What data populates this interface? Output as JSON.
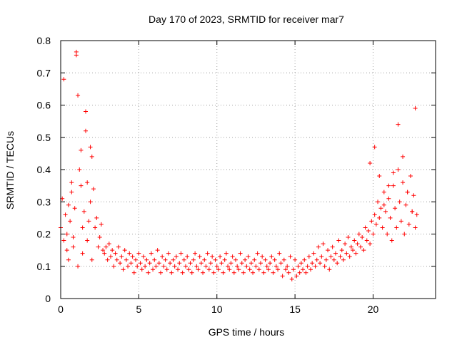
{
  "chart_data": {
    "type": "scatter",
    "title": "Day 170 of 2023, SRMTID for receiver mar7",
    "xlabel": "GPS time / hours",
    "ylabel": "SRMTID / TECUs",
    "xlim": [
      0,
      24
    ],
    "ylim": [
      0,
      0.8
    ],
    "xticks": [
      0,
      5,
      10,
      15,
      20
    ],
    "xtick_labels": [
      "0",
      "5",
      "10",
      "15",
      "20"
    ],
    "yticks": [
      0,
      0.1,
      0.2,
      0.3,
      0.4,
      0.5,
      0.6,
      0.7,
      0.8
    ],
    "ytick_labels": [
      "0",
      "0.1",
      "0.2",
      "0.3",
      "0.4",
      "0.5",
      "0.6",
      "0.7",
      "0.8"
    ],
    "grid": true,
    "marker": "+",
    "color": "#ff0000",
    "series": [
      {
        "name": "SRMTID",
        "x": [
          0.0,
          0.1,
          0.2,
          0.3,
          0.4,
          0.5,
          0.6,
          0.7,
          0.8,
          0.9,
          1.0,
          1.0,
          1.1,
          1.2,
          1.3,
          1.4,
          1.5,
          1.6,
          1.7,
          1.8,
          1.9,
          2.0,
          2.1,
          2.2,
          2.3,
          2.4,
          2.5,
          2.6,
          2.7,
          2.8,
          2.9,
          3.0,
          3.1,
          3.2,
          3.3,
          3.4,
          3.5,
          3.6,
          3.7,
          3.8,
          3.9,
          4.0,
          4.1,
          4.2,
          4.3,
          4.4,
          4.5,
          4.6,
          4.7,
          4.8,
          4.9,
          5.0,
          5.1,
          5.2,
          5.3,
          5.4,
          5.5,
          5.6,
          5.7,
          5.8,
          5.9,
          6.0,
          6.1,
          6.2,
          6.3,
          6.4,
          6.5,
          6.6,
          6.7,
          6.8,
          6.9,
          7.0,
          7.1,
          7.2,
          7.3,
          7.4,
          7.5,
          7.6,
          7.7,
          7.8,
          7.9,
          8.0,
          8.1,
          8.2,
          8.3,
          8.4,
          8.5,
          8.6,
          8.7,
          8.8,
          8.9,
          9.0,
          9.1,
          9.2,
          9.3,
          9.4,
          9.5,
          9.6,
          9.7,
          9.8,
          9.9,
          10.0,
          10.1,
          10.2,
          10.3,
          10.4,
          10.5,
          10.6,
          10.7,
          10.8,
          10.9,
          11.0,
          11.1,
          11.2,
          11.3,
          11.4,
          11.5,
          11.6,
          11.7,
          11.8,
          11.9,
          12.0,
          12.1,
          12.2,
          12.3,
          12.4,
          12.5,
          12.6,
          12.7,
          12.8,
          12.9,
          13.0,
          13.1,
          13.2,
          13.3,
          13.4,
          13.5,
          13.6,
          13.7,
          13.8,
          13.9,
          14.0,
          14.1,
          14.2,
          14.3,
          14.4,
          14.5,
          14.6,
          14.7,
          14.8,
          14.9,
          15.0,
          15.1,
          15.2,
          15.3,
          15.4,
          15.5,
          15.6,
          15.7,
          15.8,
          15.9,
          16.0,
          16.1,
          16.2,
          16.3,
          16.4,
          16.5,
          16.6,
          16.7,
          16.8,
          16.9,
          17.0,
          17.1,
          17.2,
          17.3,
          17.4,
          17.5,
          17.6,
          17.7,
          17.8,
          17.9,
          18.0,
          18.1,
          18.2,
          18.3,
          18.4,
          18.5,
          18.6,
          18.7,
          18.8,
          18.9,
          19.0,
          19.1,
          19.2,
          19.3,
          19.4,
          19.5,
          19.6,
          19.7,
          19.8,
          19.9,
          20.0,
          20.1,
          20.2,
          20.3,
          20.4,
          20.5,
          20.6,
          20.7,
          20.8,
          20.9,
          21.0,
          21.1,
          21.2,
          21.3,
          21.4,
          21.5,
          21.6,
          21.7,
          21.8,
          21.9,
          22.0,
          22.1,
          22.2,
          22.3,
          22.4,
          22.5,
          22.6,
          22.7,
          22.8,
          0.2,
          0.5,
          0.8,
          1.1,
          1.4,
          1.7,
          2.0,
          0.4,
          0.7,
          1.3,
          1.6,
          1.9,
          19.8,
          20.1,
          20.4,
          20.7,
          21.0,
          21.3,
          21.6,
          21.9,
          22.2,
          22.5,
          22.7
        ],
        "y": [
          0.22,
          0.31,
          0.18,
          0.26,
          0.2,
          0.29,
          0.24,
          0.33,
          0.19,
          0.28,
          0.765,
          0.755,
          0.63,
          0.4,
          0.35,
          0.22,
          0.27,
          0.58,
          0.36,
          0.24,
          0.3,
          0.44,
          0.34,
          0.22,
          0.25,
          0.16,
          0.19,
          0.23,
          0.15,
          0.14,
          0.16,
          0.12,
          0.17,
          0.13,
          0.15,
          0.1,
          0.14,
          0.12,
          0.16,
          0.11,
          0.13,
          0.09,
          0.15,
          0.12,
          0.1,
          0.14,
          0.11,
          0.13,
          0.08,
          0.12,
          0.1,
          0.14,
          0.11,
          0.09,
          0.13,
          0.1,
          0.12,
          0.08,
          0.11,
          0.14,
          0.09,
          0.12,
          0.1,
          0.15,
          0.11,
          0.08,
          0.13,
          0.1,
          0.12,
          0.09,
          0.14,
          0.11,
          0.08,
          0.12,
          0.1,
          0.13,
          0.09,
          0.11,
          0.14,
          0.08,
          0.12,
          0.1,
          0.13,
          0.09,
          0.11,
          0.08,
          0.12,
          0.14,
          0.1,
          0.09,
          0.13,
          0.11,
          0.08,
          0.12,
          0.1,
          0.14,
          0.09,
          0.11,
          0.13,
          0.08,
          0.12,
          0.1,
          0.09,
          0.13,
          0.11,
          0.08,
          0.12,
          0.14,
          0.1,
          0.09,
          0.11,
          0.13,
          0.08,
          0.12,
          0.1,
          0.09,
          0.14,
          0.11,
          0.08,
          0.12,
          0.1,
          0.13,
          0.09,
          0.11,
          0.08,
          0.12,
          0.1,
          0.14,
          0.09,
          0.11,
          0.13,
          0.08,
          0.12,
          0.1,
          0.09,
          0.11,
          0.13,
          0.08,
          0.12,
          0.1,
          0.09,
          0.14,
          0.11,
          0.07,
          0.12,
          0.09,
          0.1,
          0.08,
          0.13,
          0.06,
          0.09,
          0.12,
          0.07,
          0.1,
          0.08,
          0.11,
          0.09,
          0.12,
          0.08,
          0.1,
          0.13,
          0.09,
          0.11,
          0.14,
          0.1,
          0.12,
          0.16,
          0.11,
          0.13,
          0.17,
          0.1,
          0.12,
          0.15,
          0.09,
          0.13,
          0.16,
          0.12,
          0.14,
          0.11,
          0.18,
          0.13,
          0.15,
          0.12,
          0.17,
          0.14,
          0.19,
          0.13,
          0.16,
          0.15,
          0.18,
          0.14,
          0.17,
          0.2,
          0.16,
          0.19,
          0.15,
          0.22,
          0.18,
          0.21,
          0.17,
          0.24,
          0.2,
          0.26,
          0.23,
          0.3,
          0.25,
          0.28,
          0.22,
          0.33,
          0.27,
          0.2,
          0.31,
          0.25,
          0.18,
          0.35,
          0.28,
          0.22,
          0.4,
          0.3,
          0.24,
          0.36,
          0.2,
          0.29,
          0.33,
          0.23,
          0.38,
          0.27,
          0.32,
          0.22,
          0.26,
          0.68,
          0.12,
          0.16,
          0.1,
          0.14,
          0.18,
          0.12,
          0.15,
          0.36,
          0.46,
          0.52,
          0.47,
          0.42,
          0.47,
          0.38,
          0.29,
          0.35,
          0.39,
          0.54,
          0.44,
          0.33,
          0.27,
          0.59
        ]
      }
    ]
  }
}
